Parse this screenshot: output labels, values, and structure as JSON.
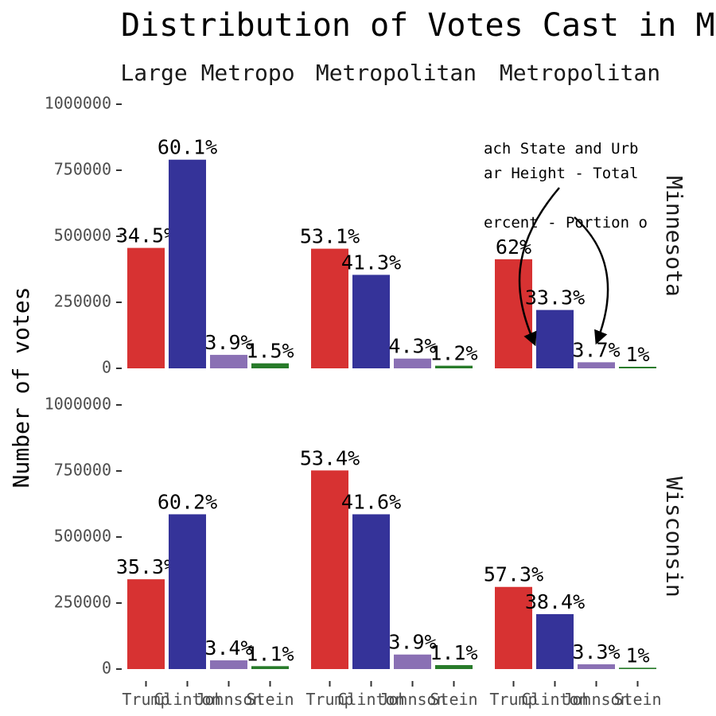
{
  "chart_data": {
    "type": "bar",
    "title": "Distribution of Votes Cast in M",
    "ylabel": "Number of votes",
    "ylim": [
      0,
      1000000
    ],
    "yticks": [
      "0",
      "250000",
      "500000",
      "750000",
      "1000000"
    ],
    "categories": [
      "Trump",
      "Clinton",
      "Johnson",
      "Stein"
    ],
    "colors": {
      "Trump": "#d73232",
      "Clinton": "#353399",
      "Johnson": "#8a70b4",
      "Stein": "#287b2a"
    },
    "columns": [
      "Large Metropo",
      "Metropolitan",
      "Metropolitan"
    ],
    "rows": [
      "Minnesota",
      "Wisconsin"
    ],
    "panels": [
      {
        "row": "Minnesota",
        "column": "Large Metropo",
        "values": [
          456000,
          790000,
          51000,
          19000
        ],
        "labels": [
          "34.5%",
          "60.1%",
          "3.9%",
          "1.5%"
        ]
      },
      {
        "row": "Minnesota",
        "column": "Metropolitan",
        "values": [
          453000,
          354000,
          37000,
          10000
        ],
        "labels": [
          "53.1%",
          "41.3%",
          "4.3%",
          "1.2%"
        ]
      },
      {
        "row": "Minnesota",
        "column": "Metropolitan",
        "values": [
          413000,
          221000,
          23000,
          6000
        ],
        "labels": [
          "62%",
          "33.3%",
          "3.7%",
          "1%"
        ]
      },
      {
        "row": "Wisconsin",
        "column": "Large Metropo",
        "values": [
          340000,
          586000,
          33000,
          11000
        ],
        "labels": [
          "35.3%",
          "60.2%",
          "3.4%",
          "1.1%"
        ]
      },
      {
        "row": "Wisconsin",
        "column": "Metropolitan",
        "values": [
          752000,
          586000,
          55000,
          15000
        ],
        "labels": [
          "53.4%",
          "41.6%",
          "3.9%",
          "1.1%"
        ]
      },
      {
        "row": "Wisconsin",
        "column": "Metropolitan",
        "values": [
          311000,
          208000,
          18000,
          5000
        ],
        "labels": [
          "57.3%",
          "38.4%",
          "3.3%",
          "1%"
        ]
      }
    ],
    "annotations": [
      "ach State and Urb",
      "ar Height - Total",
      "ercent - Portion o"
    ],
    "grid": false,
    "legend": "none"
  }
}
